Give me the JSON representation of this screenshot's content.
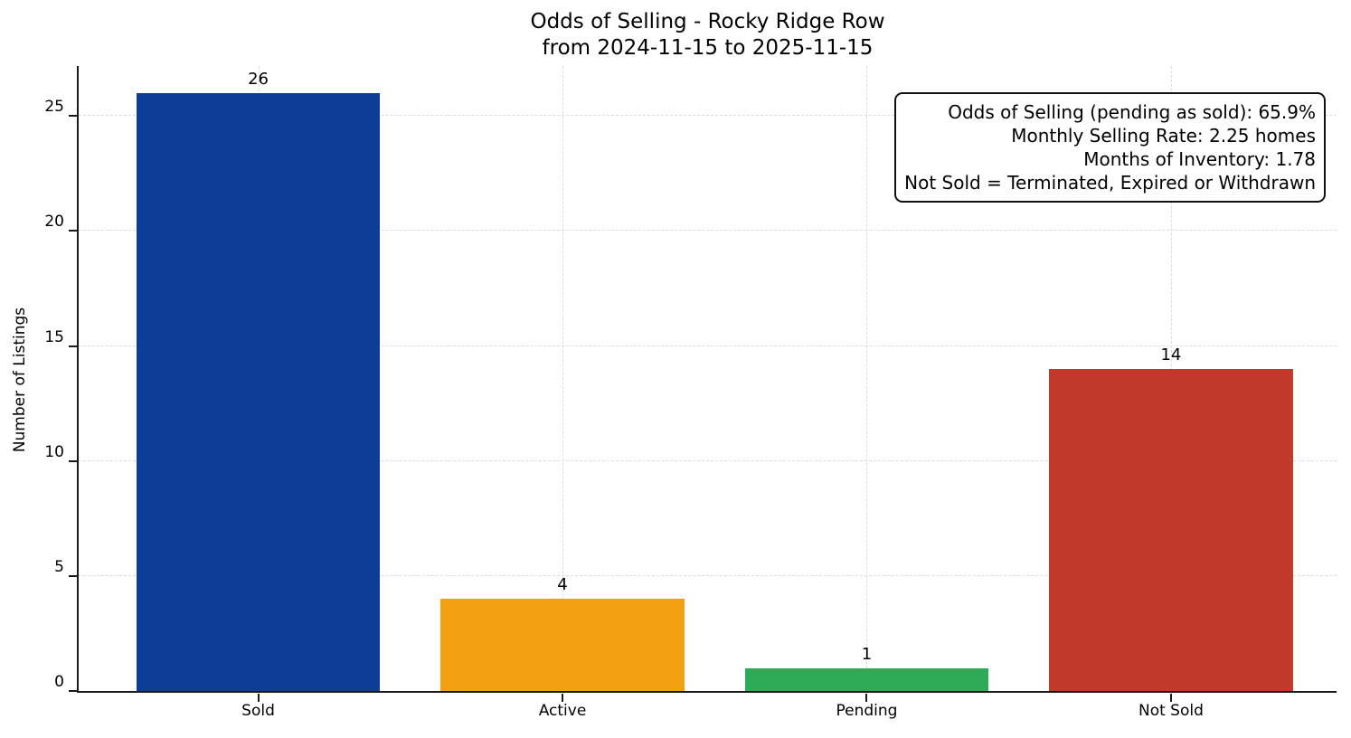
{
  "title": {
    "line1": "Odds of Selling - Rocky Ridge Row",
    "line2": "from 2024-11-15 to 2025-11-15"
  },
  "chart_data": {
    "type": "bar",
    "title": "Odds of Selling - Rocky Ridge Row\nfrom 2024-11-15 to 2025-11-15",
    "categories": [
      "Sold",
      "Active",
      "Pending",
      "Not Sold"
    ],
    "values": [
      26,
      4,
      1,
      14
    ],
    "bar_value_labels": [
      "26",
      "4",
      "1",
      "14"
    ],
    "bar_colors": [
      "#0d3d96",
      "#f2a210",
      "#2dab57",
      "#c23a2c"
    ],
    "xlabel": "",
    "ylabel": "Number of Listings",
    "ylim": [
      0,
      27.25
    ],
    "yticks": [
      0,
      5,
      10,
      15,
      20,
      25
    ],
    "grid": {
      "style": "dashed",
      "color": "#dcdcdc",
      "horizontal": true,
      "vertical": true
    },
    "legend": "none",
    "annotation": {
      "position": "top-right",
      "align": "right",
      "lines": [
        "Odds of Selling (pending as sold): 65.9%",
        "Monthly Selling Rate: 2.25 homes",
        "Months of Inventory: 1.78",
        "Not Sold = Terminated, Expired or Withdrawn"
      ]
    }
  }
}
